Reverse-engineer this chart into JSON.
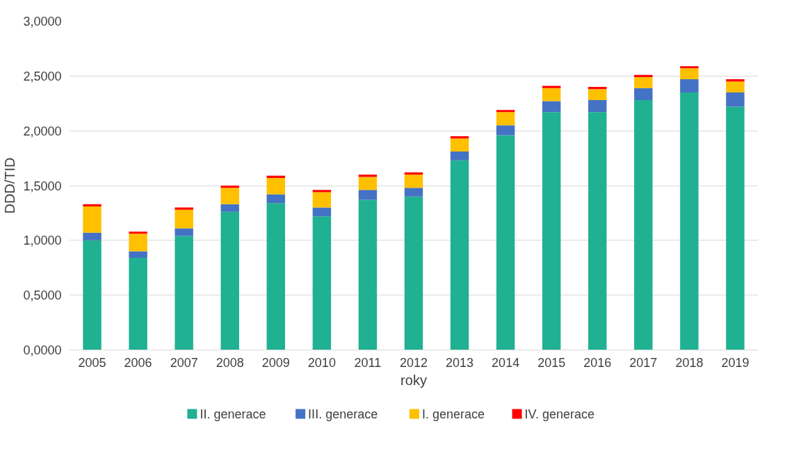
{
  "chart_data": {
    "type": "bar",
    "stacked": true,
    "xlabel": "roky",
    "ylabel": "DDD/TID",
    "categories": [
      "2005",
      "2006",
      "2007",
      "2008",
      "2009",
      "2010",
      "2011",
      "2012",
      "2013",
      "2014",
      "2015",
      "2016",
      "2017",
      "2018",
      "2019"
    ],
    "series": [
      {
        "name": "II. generace",
        "color": "#1fb191",
        "values": [
          1.0,
          0.84,
          1.04,
          1.26,
          1.34,
          1.22,
          1.37,
          1.4,
          1.73,
          1.96,
          2.17,
          2.17,
          2.28,
          2.35,
          2.22
        ]
      },
      {
        "name": "III. generace",
        "color": "#4472c4",
        "values": [
          0.07,
          0.06,
          0.07,
          0.07,
          0.08,
          0.08,
          0.09,
          0.08,
          0.08,
          0.09,
          0.1,
          0.11,
          0.11,
          0.12,
          0.13
        ]
      },
      {
        "name": "I. generace",
        "color": "#ffc000",
        "values": [
          0.24,
          0.16,
          0.17,
          0.15,
          0.15,
          0.14,
          0.12,
          0.12,
          0.12,
          0.12,
          0.12,
          0.1,
          0.1,
          0.1,
          0.1
        ]
      },
      {
        "name": "IV. generace",
        "color": "#ff0000",
        "values": [
          0.02,
          0.02,
          0.02,
          0.02,
          0.02,
          0.02,
          0.02,
          0.02,
          0.02,
          0.02,
          0.02,
          0.02,
          0.02,
          0.02,
          0.02
        ]
      }
    ],
    "ylim": [
      0,
      3
    ],
    "yticks": [
      {
        "value": 0,
        "label": "0,0000"
      },
      {
        "value": 0.5,
        "label": "0,5000"
      },
      {
        "value": 1,
        "label": "1,0000"
      },
      {
        "value": 1.5,
        "label": "1,5000"
      },
      {
        "value": 2,
        "label": "2,0000"
      },
      {
        "value": 2.5,
        "label": "2,5000"
      },
      {
        "value": 3,
        "label": "3,0000"
      }
    ],
    "grid": "y",
    "legend": "bottom"
  }
}
